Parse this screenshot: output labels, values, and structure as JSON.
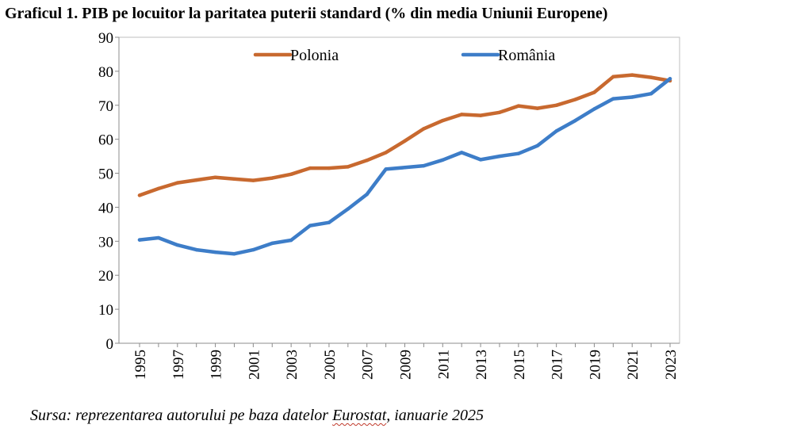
{
  "title": "Graficul 1. PIB pe locuitor la paritatea puterii standard (% din media Uniunii Europene)",
  "source": {
    "prefix": "Sursa: reprezentarea autorului pe baza datelor ",
    "highlight": "Eurostat",
    "suffix": ", ianuarie 2025"
  },
  "chart_data": {
    "type": "line",
    "title": "Graficul 1. PIB pe locuitor la paritatea puterii standard (% din media Uniunii Europene)",
    "xlabel": "",
    "ylabel": "",
    "ylim": [
      0,
      90
    ],
    "yticks": [
      "0",
      "10",
      "20",
      "30",
      "40",
      "50",
      "60",
      "70",
      "80",
      "90"
    ],
    "x": [
      1995,
      1996,
      1997,
      1998,
      1999,
      2000,
      2001,
      2002,
      2003,
      2004,
      2005,
      2006,
      2007,
      2008,
      2009,
      2010,
      2011,
      2012,
      2013,
      2014,
      2015,
      2016,
      2017,
      2018,
      2019,
      2020,
      2021,
      2022,
      2023
    ],
    "xticks": [
      "1995",
      "1997",
      "1999",
      "2001",
      "2003",
      "2005",
      "2007",
      "2009",
      "2011",
      "2013",
      "2015",
      "2017",
      "2019",
      "2021",
      "2023"
    ],
    "grid": false,
    "legend_position": "top",
    "series": [
      {
        "name": "Polonia",
        "color": "#c8692f",
        "values": [
          43.5,
          45.5,
          47.2,
          48,
          48.8,
          48.3,
          47.9,
          48.6,
          49.7,
          51.5,
          51.5,
          51.9,
          53.8,
          56.1,
          59.5,
          63.1,
          65.5,
          67.3,
          67,
          67.9,
          69.8,
          69.1,
          70,
          71.7,
          73.8,
          78.4,
          78.9,
          78.2,
          77.2
        ]
      },
      {
        "name": "România",
        "color": "#3d7dc8",
        "values": [
          30.4,
          31,
          28.9,
          27.5,
          26.8,
          26.3,
          27.5,
          29.4,
          30.3,
          34.6,
          35.5,
          39.5,
          43.8,
          51.2,
          51.7,
          52.2,
          53.9,
          56.1,
          54,
          55,
          55.8,
          58.1,
          62.4,
          65.5,
          68.9,
          71.9,
          72.4,
          73.4,
          77.8
        ]
      }
    ]
  }
}
